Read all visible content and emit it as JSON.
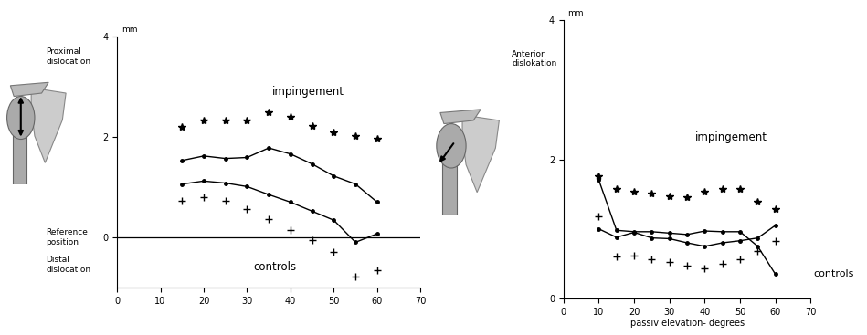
{
  "chart_data": [
    {
      "type": "line",
      "ylabel": "mm",
      "y_direction_labels": [
        "Proximal\ndislocation",
        "Reference\nposition",
        "Distal\ndislocation"
      ],
      "annotations": [
        "impingement",
        "controls"
      ],
      "reference_line": 0,
      "x": [
        15,
        20,
        25,
        30,
        35,
        40,
        45,
        50,
        55,
        60
      ],
      "xlim": [
        0,
        70
      ],
      "xticks": [
        0,
        10,
        20,
        30,
        40,
        50,
        60,
        70
      ],
      "ylim": [
        -1,
        4
      ],
      "yticks": [
        0,
        2,
        4
      ],
      "series": [
        {
          "color": "#000000",
          "marker": "star",
          "line_style": "none",
          "values": [
            2.2,
            2.32,
            2.32,
            2.32,
            2.49,
            2.4,
            2.22,
            2.09,
            2.02,
            1.97
          ]
        },
        {
          "color": "#000000",
          "marker": "dot",
          "line_style": "solid",
          "values": [
            1.53,
            1.62,
            1.57,
            1.59,
            1.78,
            1.66,
            1.46,
            1.22,
            1.06,
            0.7
          ]
        },
        {
          "color": "#000000",
          "marker": "dot",
          "line_style": "solid",
          "values": [
            1.06,
            1.12,
            1.08,
            1.01,
            0.85,
            0.7,
            0.52,
            0.34,
            -0.1,
            0.07
          ]
        },
        {
          "color": "#000000",
          "marker": "plus",
          "line_style": "none",
          "values": [
            0.72,
            0.79,
            0.72,
            0.56,
            0.36,
            0.14,
            -0.05,
            -0.29,
            -0.79,
            -0.65
          ]
        }
      ]
    },
    {
      "type": "line",
      "ylabel": "mm",
      "xlabel": "passiv elevation- degrees",
      "y_direction_labels": [
        "Anterior\ndislokation"
      ],
      "annotations": [
        "impingement",
        "controls"
      ],
      "x": [
        10,
        15,
        20,
        25,
        30,
        35,
        40,
        45,
        50,
        55,
        60
      ],
      "xlim": [
        0,
        70
      ],
      "xticks": [
        0,
        10,
        20,
        30,
        40,
        50,
        60,
        70
      ],
      "ylim": [
        0,
        4
      ],
      "yticks": [
        0,
        2,
        4
      ],
      "series": [
        {
          "color": "#000000",
          "marker": "star",
          "line_style": "none",
          "values": [
            1.76,
            1.58,
            1.54,
            1.51,
            1.47,
            1.46,
            1.54,
            1.58,
            1.58,
            1.39,
            1.29
          ]
        },
        {
          "color": "#000000",
          "marker": "dot",
          "line_style": "solid",
          "values": [
            1.7,
            0.98,
            0.96,
            0.96,
            0.94,
            0.92,
            0.97,
            0.96,
            0.96,
            0.75,
            0.35
          ]
        },
        {
          "color": "#000000",
          "marker": "dot",
          "line_style": "solid",
          "values": [
            1.0,
            0.88,
            0.95,
            0.87,
            0.86,
            0.8,
            0.75,
            0.8,
            0.83,
            0.87,
            1.05
          ]
        },
        {
          "color": "#000000",
          "marker": "plus",
          "line_style": "none",
          "values": [
            1.18,
            0.6,
            0.62,
            0.57,
            0.52,
            0.47,
            0.43,
            0.5,
            0.57,
            0.68,
            0.82
          ]
        }
      ]
    }
  ]
}
